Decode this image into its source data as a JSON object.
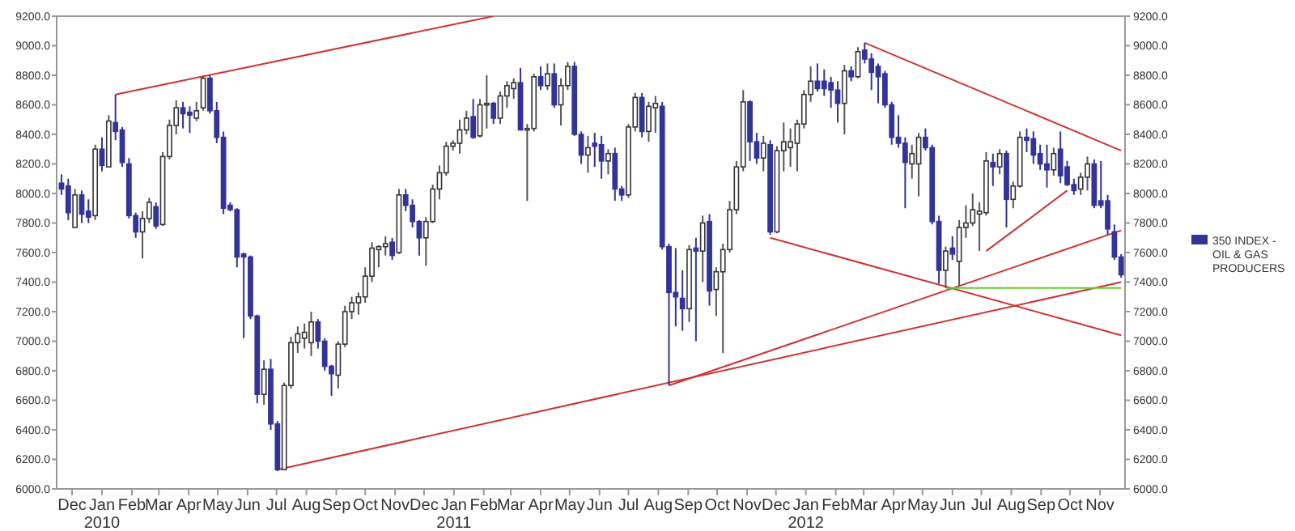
{
  "chart_data": {
    "type": "candlestick",
    "legend": "right",
    "x": [
      "2009-11-20",
      "2009-11-27",
      "2009-12-04",
      "2009-12-11",
      "2009-12-18",
      "2009-12-25",
      "2010-01-01",
      "2010-01-08",
      "2010-01-15",
      "2010-01-22",
      "2010-01-29",
      "2010-02-05",
      "2010-02-12",
      "2010-02-19",
      "2010-02-26",
      "2010-03-05",
      "2010-03-12",
      "2010-03-19",
      "2010-03-26",
      "2010-04-02",
      "2010-04-09",
      "2010-04-16",
      "2010-04-23",
      "2010-04-30",
      "2010-05-07",
      "2010-05-14",
      "2010-05-21",
      "2010-05-28",
      "2010-06-04",
      "2010-06-11",
      "2010-06-18",
      "2010-06-25",
      "2010-07-02",
      "2010-07-09",
      "2010-07-16",
      "2010-07-23",
      "2010-07-30",
      "2010-08-06",
      "2010-08-13",
      "2010-08-20",
      "2010-08-27",
      "2010-09-03",
      "2010-09-10",
      "2010-09-17",
      "2010-09-24",
      "2010-10-01",
      "2010-10-08",
      "2010-10-15",
      "2010-10-22",
      "2010-10-29",
      "2010-11-05",
      "2010-11-12",
      "2010-11-19",
      "2010-11-26",
      "2010-12-03",
      "2010-12-10",
      "2010-12-17",
      "2010-12-24",
      "2010-12-31",
      "2011-01-07",
      "2011-01-14",
      "2011-01-21",
      "2011-01-28",
      "2011-02-04",
      "2011-02-11",
      "2011-02-18",
      "2011-02-25",
      "2011-03-04",
      "2011-03-11",
      "2011-03-18",
      "2011-03-25",
      "2011-04-01",
      "2011-04-08",
      "2011-04-15",
      "2011-04-22",
      "2011-04-29",
      "2011-05-06",
      "2011-05-13",
      "2011-05-20",
      "2011-05-27",
      "2011-06-03",
      "2011-06-10",
      "2011-06-17",
      "2011-06-24",
      "2011-07-01",
      "2011-07-08",
      "2011-07-15",
      "2011-07-22",
      "2011-07-29",
      "2011-08-05",
      "2011-08-12",
      "2011-08-19",
      "2011-08-26",
      "2011-09-02",
      "2011-09-09",
      "2011-09-16",
      "2011-09-23",
      "2011-09-30",
      "2011-10-07",
      "2011-10-14",
      "2011-10-21",
      "2011-10-28",
      "2011-11-04",
      "2011-11-11",
      "2011-11-18",
      "2011-11-25",
      "2011-12-02",
      "2011-12-09",
      "2011-12-16",
      "2011-12-23",
      "2011-12-30",
      "2012-01-06",
      "2012-01-13",
      "2012-01-20",
      "2012-01-27",
      "2012-02-03",
      "2012-02-10",
      "2012-02-17",
      "2012-02-24",
      "2012-03-02",
      "2012-03-09",
      "2012-03-16",
      "2012-03-23",
      "2012-03-30",
      "2012-04-06",
      "2012-04-13",
      "2012-04-20",
      "2012-04-27",
      "2012-05-04",
      "2012-05-11",
      "2012-05-18",
      "2012-05-25",
      "2012-06-01",
      "2012-06-08",
      "2012-06-15",
      "2012-06-22",
      "2012-06-29",
      "2012-07-06",
      "2012-07-13",
      "2012-07-20",
      "2012-07-27",
      "2012-08-03",
      "2012-08-10",
      "2012-08-17",
      "2012-08-24",
      "2012-08-31",
      "2012-09-07",
      "2012-09-14",
      "2012-09-21",
      "2012-09-28",
      "2012-10-05",
      "2012-10-12",
      "2012-10-19",
      "2012-10-26",
      "2012-11-02",
      "2012-11-09",
      "2012-11-16",
      "2012-11-23"
    ],
    "series": [
      {
        "name": "350 INDEX - OIL & GAS PRODUCERS",
        "color": "#333399",
        "colors": [
          "#333399",
          "#333399",
          "#ffffff",
          "#333399",
          "#333399",
          "#ffffff",
          "#333399",
          "#ffffff",
          "#333399",
          "#333399",
          "#333399",
          "#333399",
          "#ffffff",
          "#ffffff",
          "#333399",
          "#ffffff",
          "#ffffff",
          "#ffffff",
          "#333399",
          "#333399",
          "#ffffff",
          "#ffffff",
          "#333399",
          "#333399",
          "#333399",
          "#333399",
          "#333399",
          "#333399",
          "#333399",
          "#333399",
          "#ffffff",
          "#333399",
          "#333399",
          "#ffffff",
          "#ffffff",
          "#ffffff",
          "#ffffff",
          "#ffffff",
          "#333399",
          "#333399",
          "#333399",
          "#ffffff",
          "#ffffff",
          "#ffffff",
          "#ffffff",
          "#ffffff",
          "#ffffff",
          "#ffffff",
          "#ffffff",
          "#333399",
          "#ffffff",
          "#333399",
          "#333399",
          "#333399",
          "#ffffff",
          "#ffffff",
          "#ffffff",
          "#ffffff",
          "#ffffff",
          "#ffffff",
          "#ffffff",
          "#333399",
          "#ffffff",
          "#ffffff",
          "#333399",
          "#ffffff",
          "#ffffff",
          "#ffffff",
          "#333399",
          "#ffffff",
          "#ffffff",
          "#333399",
          "#ffffff",
          "#333399",
          "#ffffff",
          "#ffffff",
          "#333399",
          "#333399",
          "#ffffff",
          "#333399",
          "#333399",
          "#ffffff",
          "#333399",
          "#333399",
          "#ffffff",
          "#ffffff",
          "#333399",
          "#ffffff",
          "#ffffff",
          "#333399",
          "#333399",
          "#333399",
          "#333399",
          "#ffffff",
          "#333399",
          "#ffffff",
          "#333399",
          "#ffffff",
          "#ffffff",
          "#ffffff",
          "#ffffff",
          "#ffffff",
          "#333399",
          "#333399",
          "#ffffff",
          "#333399",
          "#ffffff",
          "#ffffff",
          "#ffffff",
          "#ffffff",
          "#ffffff",
          "#ffffff",
          "#333399",
          "#333399",
          "#333399",
          "#333399",
          "#ffffff",
          "#333399",
          "#ffffff",
          "#333399",
          "#333399",
          "#333399",
          "#333399",
          "#333399",
          "#333399",
          "#333399",
          "#ffffff",
          "#ffffff",
          "#333399",
          "#333399",
          "#333399",
          "#ffffff",
          "#333399",
          "#ffffff",
          "#ffffff",
          "#ffffff",
          "#ffffff",
          "#ffffff",
          "#333399",
          "#ffffff",
          "#333399",
          "#ffffff",
          "#ffffff",
          "#333399",
          "#333399",
          "#333399",
          "#333399",
          "#ffffff",
          "#333399",
          "#333399",
          "#333399",
          "#ffffff",
          "#ffffff",
          "#333399",
          "#333399",
          "#333399",
          "#333399",
          "#333399"
        ],
        "ohlc": [
          [
            8070,
            8130,
            7990,
            8030
          ],
          [
            8050,
            8100,
            7820,
            7870
          ],
          [
            7770,
            8030,
            7770,
            7990
          ],
          [
            7990,
            8020,
            7800,
            7860
          ],
          [
            7880,
            7960,
            7800,
            7840
          ],
          [
            7850,
            8330,
            7820,
            8300
          ],
          [
            8300,
            8380,
            8150,
            8190
          ],
          [
            8180,
            8530,
            8180,
            8490
          ],
          [
            8480,
            8670,
            8360,
            8420
          ],
          [
            8430,
            8450,
            8180,
            8210
          ],
          [
            8200,
            8240,
            7830,
            7850
          ],
          [
            7850,
            7870,
            7700,
            7740
          ],
          [
            7740,
            7880,
            7560,
            7830
          ],
          [
            7830,
            7970,
            7800,
            7940
          ],
          [
            7910,
            7940,
            7760,
            7780
          ],
          [
            7790,
            8280,
            7780,
            8250
          ],
          [
            8250,
            8500,
            8230,
            8460
          ],
          [
            8460,
            8630,
            8400,
            8580
          ],
          [
            8580,
            8620,
            8440,
            8540
          ],
          [
            8550,
            8590,
            8410,
            8530
          ],
          [
            8510,
            8620,
            8490,
            8560
          ],
          [
            8580,
            8790,
            8560,
            8780
          ],
          [
            8780,
            8800,
            8540,
            8560
          ],
          [
            8560,
            8620,
            8340,
            8380
          ],
          [
            8380,
            8420,
            7860,
            7900
          ],
          [
            7920,
            7940,
            7880,
            7890
          ],
          [
            7890,
            7900,
            7500,
            7570
          ],
          [
            7590,
            7600,
            7020,
            7570
          ],
          [
            7570,
            7580,
            7150,
            7170
          ],
          [
            7170,
            7180,
            6580,
            6640
          ],
          [
            6640,
            6870,
            6570,
            6810
          ],
          [
            6810,
            6880,
            6400,
            6440
          ],
          [
            6440,
            6460,
            6120,
            6130
          ],
          [
            6130,
            6720,
            6130,
            6700
          ],
          [
            6700,
            7030,
            6680,
            6990
          ],
          [
            6990,
            7100,
            6920,
            7050
          ],
          [
            7020,
            7120,
            6950,
            7060
          ],
          [
            6990,
            7200,
            6900,
            7130
          ],
          [
            7130,
            7150,
            6950,
            7000
          ],
          [
            7000,
            7020,
            6800,
            6830
          ],
          [
            6830,
            6840,
            6630,
            6780
          ],
          [
            6770,
            7000,
            6680,
            6980
          ],
          [
            6980,
            7240,
            6960,
            7200
          ],
          [
            7200,
            7300,
            7150,
            7260
          ],
          [
            7260,
            7330,
            7180,
            7300
          ],
          [
            7300,
            7500,
            7260,
            7440
          ],
          [
            7440,
            7670,
            7400,
            7630
          ],
          [
            7620,
            7650,
            7500,
            7640
          ],
          [
            7640,
            7710,
            7580,
            7660
          ],
          [
            7670,
            7700,
            7550,
            7580
          ],
          [
            7600,
            8030,
            7590,
            7990
          ],
          [
            7990,
            8030,
            7880,
            7920
          ],
          [
            7920,
            7960,
            7770,
            7810
          ],
          [
            7810,
            7820,
            7580,
            7700
          ],
          [
            7700,
            7840,
            7510,
            7810
          ],
          [
            7810,
            8060,
            7800,
            8030
          ],
          [
            8030,
            8190,
            7960,
            8140
          ],
          [
            8140,
            8350,
            8120,
            8320
          ],
          [
            8320,
            8360,
            8290,
            8340
          ],
          [
            8340,
            8500,
            8270,
            8430
          ],
          [
            8430,
            8560,
            8400,
            8510
          ],
          [
            8520,
            8640,
            8370,
            8380
          ],
          [
            8390,
            8640,
            8380,
            8600
          ],
          [
            8600,
            8800,
            8440,
            8610
          ],
          [
            8610,
            8620,
            8470,
            8510
          ],
          [
            8510,
            8690,
            8470,
            8660
          ],
          [
            8660,
            8760,
            8580,
            8730
          ],
          [
            8710,
            8780,
            8640,
            8750
          ],
          [
            8750,
            8850,
            8430,
            8430
          ],
          [
            8440,
            8470,
            7950,
            8440
          ],
          [
            8440,
            8810,
            8420,
            8790
          ],
          [
            8790,
            8860,
            8700,
            8730
          ],
          [
            8730,
            8880,
            8700,
            8810
          ],
          [
            8810,
            8880,
            8580,
            8600
          ],
          [
            8600,
            8780,
            8460,
            8730
          ],
          [
            8730,
            8890,
            8700,
            8860
          ],
          [
            8860,
            8890,
            8390,
            8400
          ],
          [
            8400,
            8420,
            8200,
            8260
          ],
          [
            8260,
            8390,
            8140,
            8310
          ],
          [
            8340,
            8410,
            8180,
            8320
          ],
          [
            8330,
            8390,
            8100,
            8220
          ],
          [
            8220,
            8300,
            8130,
            8270
          ],
          [
            8270,
            8310,
            7950,
            8030
          ],
          [
            8030,
            8050,
            7950,
            7990
          ],
          [
            7990,
            8470,
            7970,
            8450
          ],
          [
            8450,
            8680,
            8420,
            8650
          ],
          [
            8650,
            8680,
            8380,
            8420
          ],
          [
            8420,
            8620,
            8350,
            8590
          ],
          [
            8580,
            8660,
            8410,
            8610
          ],
          [
            8590,
            8620,
            7620,
            7640
          ],
          [
            7640,
            7660,
            6700,
            7330
          ],
          [
            7330,
            7630,
            7100,
            7300
          ],
          [
            7290,
            7480,
            7070,
            7220
          ],
          [
            7220,
            7650,
            7130,
            7620
          ],
          [
            7630,
            7700,
            7000,
            7610
          ],
          [
            7610,
            7850,
            7400,
            7800
          ],
          [
            7810,
            7860,
            7240,
            7340
          ],
          [
            7350,
            7500,
            7170,
            7470
          ],
          [
            7470,
            7660,
            6920,
            7620
          ],
          [
            7620,
            7950,
            7600,
            7890
          ],
          [
            7890,
            8220,
            7860,
            8180
          ],
          [
            8180,
            8700,
            8150,
            8620
          ],
          [
            8620,
            8630,
            8220,
            8350
          ],
          [
            8350,
            8410,
            8200,
            8240
          ],
          [
            8240,
            8390,
            8150,
            8340
          ],
          [
            8330,
            8360,
            7720,
            7740
          ],
          [
            7740,
            8320,
            7730,
            8290
          ],
          [
            8290,
            8480,
            8150,
            8350
          ],
          [
            8310,
            8440,
            8180,
            8350
          ],
          [
            8340,
            8500,
            8150,
            8470
          ],
          [
            8470,
            8700,
            8440,
            8670
          ],
          [
            8670,
            8860,
            8620,
            8760
          ],
          [
            8760,
            8880,
            8690,
            8710
          ],
          [
            8760,
            8840,
            8660,
            8710
          ],
          [
            8750,
            8790,
            8580,
            8700
          ],
          [
            8700,
            8760,
            8480,
            8610
          ],
          [
            8610,
            8870,
            8400,
            8830
          ],
          [
            8830,
            8860,
            8760,
            8790
          ],
          [
            8790,
            8990,
            8780,
            8960
          ],
          [
            8970,
            9020,
            8880,
            8910
          ],
          [
            8910,
            8950,
            8700,
            8820
          ],
          [
            8860,
            8880,
            8610,
            8790
          ],
          [
            8810,
            8830,
            8580,
            8600
          ],
          [
            8600,
            8620,
            8330,
            8380
          ],
          [
            8380,
            8530,
            8310,
            8340
          ],
          [
            8340,
            8380,
            7900,
            8210
          ],
          [
            8200,
            8330,
            8100,
            8270
          ],
          [
            8200,
            8410,
            7980,
            8380
          ],
          [
            8380,
            8440,
            8290,
            8310
          ],
          [
            8310,
            8330,
            7790,
            7810
          ],
          [
            7810,
            7850,
            7390,
            7480
          ],
          [
            7480,
            7640,
            7360,
            7610
          ],
          [
            7630,
            7710,
            7550,
            7590
          ],
          [
            7540,
            7820,
            7370,
            7770
          ],
          [
            7770,
            7920,
            7700,
            7800
          ],
          [
            7800,
            8000,
            7780,
            7890
          ],
          [
            7860,
            7940,
            7610,
            7880
          ],
          [
            7870,
            8280,
            7850,
            8220
          ],
          [
            8210,
            8270,
            8050,
            8180
          ],
          [
            8180,
            8300,
            8130,
            8270
          ],
          [
            8270,
            8290,
            7770,
            7960
          ],
          [
            7960,
            8080,
            7900,
            8050
          ],
          [
            8050,
            8420,
            8040,
            8380
          ],
          [
            8380,
            8440,
            8280,
            8360
          ],
          [
            8370,
            8420,
            8200,
            8260
          ],
          [
            8270,
            8330,
            8160,
            8200
          ],
          [
            8200,
            8330,
            8040,
            8160
          ],
          [
            8160,
            8310,
            8120,
            8270
          ],
          [
            8300,
            8420,
            8070,
            8120
          ],
          [
            8180,
            8220,
            8050,
            8060
          ],
          [
            8060,
            8100,
            7990,
            8020
          ],
          [
            8030,
            8140,
            7990,
            8110
          ],
          [
            8110,
            8250,
            8020,
            8200
          ],
          [
            8200,
            8230,
            7900,
            7920
          ],
          [
            7950,
            8220,
            7900,
            7920
          ],
          [
            7950,
            7990,
            7720,
            7760
          ],
          [
            7740,
            7790,
            7550,
            7570
          ],
          [
            7570,
            7590,
            7430,
            7450
          ]
        ]
      },
      {
        "type": "line",
        "color": "#cc3333",
        "x": [
          "2010-01-15",
          "2011-02-11"
        ],
        "values": [
          8670,
          9200
        ]
      },
      {
        "type": "line",
        "color": "#cc3333",
        "x": [
          "2010-07-02",
          "2012-11-23"
        ],
        "values": [
          6130,
          7400
        ]
      },
      {
        "type": "line",
        "color": "#cc3333",
        "x": [
          "2011-08-12",
          "2012-11-23"
        ],
        "values": [
          6700,
          7750
        ]
      },
      {
        "type": "line",
        "color": "#cc3333",
        "x": [
          "2012-03-02",
          "2012-11-23"
        ],
        "values": [
          9020,
          8290
        ]
      },
      {
        "type": "line",
        "color": "#cc3333",
        "x": [
          "2011-11-25",
          "2012-11-23"
        ],
        "values": [
          7700,
          7040
        ]
      },
      {
        "type": "line",
        "color": "#cc3333",
        "x": [
          "2012-07-06",
          "2012-09-28"
        ],
        "values": [
          7610,
          8020
        ]
      },
      {
        "type": "line",
        "color": "#66cc33",
        "x": [
          "2012-05-25",
          "2012-11-23"
        ],
        "values": [
          7360,
          7360
        ]
      }
    ],
    "xlim": [
      "2009-11-15",
      "2012-11-27"
    ],
    "xticks": [
      {
        "value": "2009-12-01",
        "label": "Dec"
      },
      {
        "value": "2010-01-01",
        "label": "Jan\n2010"
      },
      {
        "value": "2010-02-01",
        "label": "Feb"
      },
      {
        "value": "2010-03-01",
        "label": "Mar"
      },
      {
        "value": "2010-04-01",
        "label": "Apr"
      },
      {
        "value": "2010-05-01",
        "label": "May"
      },
      {
        "value": "2010-06-01",
        "label": "Jun"
      },
      {
        "value": "2010-07-01",
        "label": "Jul"
      },
      {
        "value": "2010-08-01",
        "label": "Aug"
      },
      {
        "value": "2010-09-01",
        "label": "Sep"
      },
      {
        "value": "2010-10-01",
        "label": "Oct"
      },
      {
        "value": "2010-11-01",
        "label": "Nov"
      },
      {
        "value": "2010-12-01",
        "label": "Dec"
      },
      {
        "value": "2011-01-01",
        "label": "Jan\n2011"
      },
      {
        "value": "2011-02-01",
        "label": "Feb"
      },
      {
        "value": "2011-03-01",
        "label": "Mar"
      },
      {
        "value": "2011-04-01",
        "label": "Apr"
      },
      {
        "value": "2011-05-01",
        "label": "May"
      },
      {
        "value": "2011-06-01",
        "label": "Jun"
      },
      {
        "value": "2011-07-01",
        "label": "Jul"
      },
      {
        "value": "2011-08-01",
        "label": "Aug"
      },
      {
        "value": "2011-09-01",
        "label": "Sep"
      },
      {
        "value": "2011-10-01",
        "label": "Oct"
      },
      {
        "value": "2011-11-01",
        "label": "Nov"
      },
      {
        "value": "2011-12-01",
        "label": "Dec"
      },
      {
        "value": "2012-01-01",
        "label": "Jan\n2012"
      },
      {
        "value": "2012-02-01",
        "label": "Feb"
      },
      {
        "value": "2012-03-01",
        "label": "Mar"
      },
      {
        "value": "2012-04-01",
        "label": "Apr"
      },
      {
        "value": "2012-05-01",
        "label": "May"
      },
      {
        "value": "2012-06-01",
        "label": "Jun"
      },
      {
        "value": "2012-07-01",
        "label": "Jul"
      },
      {
        "value": "2012-08-01",
        "label": "Aug"
      },
      {
        "value": "2012-09-01",
        "label": "Sep"
      },
      {
        "value": "2012-10-01",
        "label": "Oct"
      },
      {
        "value": "2012-11-01",
        "label": "Nov"
      }
    ],
    "ylim": [
      6000,
      9200
    ],
    "yticks": [
      {
        "value": 6000,
        "label": "6000.0"
      },
      {
        "value": 6200,
        "label": "6200.0"
      },
      {
        "value": 6400,
        "label": "6400.0"
      },
      {
        "value": 6600,
        "label": "6600.0"
      },
      {
        "value": 6800,
        "label": "6800.0"
      },
      {
        "value": 7000,
        "label": "7000.0"
      },
      {
        "value": 7200,
        "label": "7200.0"
      },
      {
        "value": 7400,
        "label": "7400.0"
      },
      {
        "value": 7600,
        "label": "7600.0"
      },
      {
        "value": 7800,
        "label": "7800.0"
      },
      {
        "value": 8000,
        "label": "8000.0"
      },
      {
        "value": 8200,
        "label": "8200.0"
      },
      {
        "value": 8400,
        "label": "8400.0"
      },
      {
        "value": 8600,
        "label": "8600.0"
      },
      {
        "value": 8800,
        "label": "8800.0"
      },
      {
        "value": 9000,
        "label": "9000.0"
      },
      {
        "value": 9200,
        "label": "9200.0"
      }
    ],
    "y2lim": [
      6000,
      9200
    ],
    "y2ticks": [
      {
        "value": 6000,
        "label": "6000.0"
      },
      {
        "value": 6200,
        "label": "6200.0"
      },
      {
        "value": 6400,
        "label": "6400.0"
      },
      {
        "value": 6600,
        "label": "6600.0"
      },
      {
        "value": 6800,
        "label": "6800.0"
      },
      {
        "value": 7000,
        "label": "7000.0"
      },
      {
        "value": 7200,
        "label": "7200.0"
      },
      {
        "value": 7400,
        "label": "7400.0"
      },
      {
        "value": 7600,
        "label": "7600.0"
      },
      {
        "value": 7800,
        "label": "7800.0"
      },
      {
        "value": 8000,
        "label": "8000.0"
      },
      {
        "value": 8200,
        "label": "8200.0"
      },
      {
        "value": 8400,
        "label": "8400.0"
      },
      {
        "value": 8600,
        "label": "8600.0"
      },
      {
        "value": 8800,
        "label": "8800.0"
      },
      {
        "value": 9000,
        "label": "9000.0"
      },
      {
        "value": 9200,
        "label": "9200.0"
      }
    ]
  }
}
